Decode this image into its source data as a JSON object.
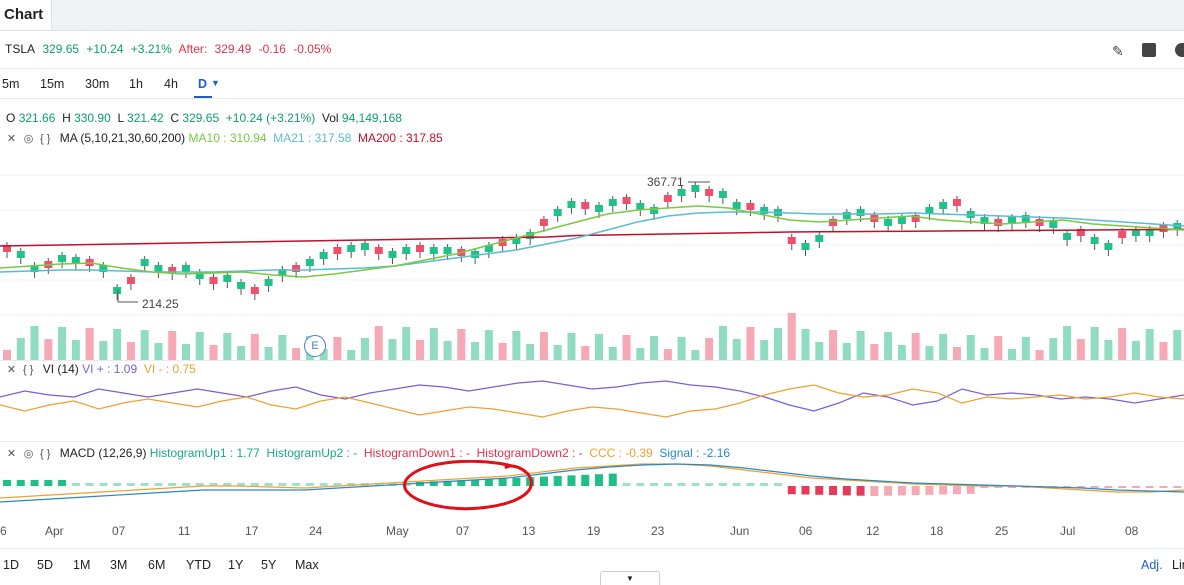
{
  "tab": {
    "title": "Chart"
  },
  "quote": {
    "symbol": "TSLA",
    "price": "329.65",
    "change": "+10.24",
    "change_pct": "+3.21%",
    "after_label": "After:",
    "after_price": "329.49",
    "after_change": "-0.16",
    "after_pct": "-0.05%"
  },
  "intervals": [
    "5m",
    "15m",
    "30m",
    "1h",
    "4h",
    "D"
  ],
  "interval_selected": "D",
  "ohlc": {
    "o_label": "O",
    "o": "321.66",
    "h_label": "H",
    "h": "330.90",
    "l_label": "L",
    "l": "321.42",
    "c_label": "C",
    "c": "329.65",
    "chg": "+10.24 (+3.21%)",
    "vol_label": "Vol",
    "vol": "94,149,168"
  },
  "ma_legend": {
    "name": "MA (5,10,21,30,60,200)",
    "ma10": "MA10 : 310.94",
    "ma21": "MA21 : 317.58",
    "ma200": "MA200 : 317.85"
  },
  "vi_legend": {
    "name": "VI (14)",
    "vi_plus": "VI + : 1.09",
    "vi_minus": "VI - : 0.75"
  },
  "macd_legend": {
    "name": "MACD (12,26,9)",
    "hu1": "HistogramUp1 : 1.77",
    "hu2": "HistogramUp2 : -",
    "hd1": "HistogramDown1 : -",
    "hd2": "HistogramDown2 : -",
    "ccc": "CCC : -0.39",
    "signal": "Signal : -2.16"
  },
  "price_labels": {
    "high": "367.71",
    "low": "214.25"
  },
  "earnings_marker": "E",
  "x_axis": [
    "6",
    "Apr",
    "07",
    "11",
    "17",
    "24",
    "May",
    "07",
    "13",
    "19",
    "23",
    "Jun",
    "06",
    "12",
    "18",
    "25",
    "Jul",
    "08"
  ],
  "ranges": [
    "1D",
    "5D",
    "1M",
    "3M",
    "6M",
    "YTD",
    "1Y",
    "5Y",
    "Max"
  ],
  "footer_right": {
    "adj": "Adj.",
    "lin": "Lin"
  },
  "colors": {
    "up": "#22c08b",
    "down": "#ef4f6b",
    "ma10": "#7ac943",
    "ma21": "#5bbcd0",
    "ma200": "#c0102a",
    "vi_plus": "#7b5fd1",
    "vi_minus": "#f0a030",
    "annotation": "#e0101a"
  }
}
